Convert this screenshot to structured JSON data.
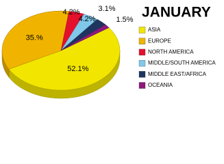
{
  "chart_data": {
    "type": "pie",
    "title": "JANUARY",
    "categories": [
      "ASIA",
      "EUROPE",
      "NORTH AMERICA",
      "MIDDLE/SOUTH AMERICA",
      "MIDDLE EAST/AFRICA",
      "OCEANIA"
    ],
    "values": [
      52.1,
      35.0,
      4.2,
      4.2,
      3.1,
      1.5
    ],
    "value_labels": [
      "52.1%",
      "35.%",
      "4.2%",
      "4.2%",
      "3.1%",
      "1.5%"
    ],
    "colors": [
      "#f2e600",
      "#f0b400",
      "#e4102c",
      "#80c8ea",
      "#1e3560",
      "#8c1a7c"
    ],
    "legend": "right"
  }
}
